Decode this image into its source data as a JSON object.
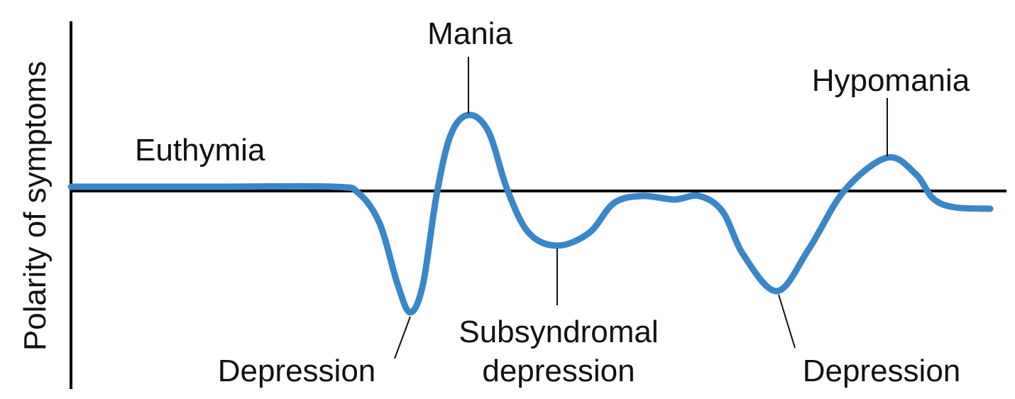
{
  "axis": {
    "y_label": "Polarity of symptoms"
  },
  "labels": {
    "euthymia": "Euthymia",
    "mania": "Mania",
    "hypomania": "Hypomania",
    "depression_1": "Depression",
    "subsyndromal_line1": "Subsyndromal",
    "subsyndromal_line2": "depression",
    "depression_2": "Depression"
  },
  "colors": {
    "curve": "#3a87c8",
    "axis": "#000000"
  }
}
